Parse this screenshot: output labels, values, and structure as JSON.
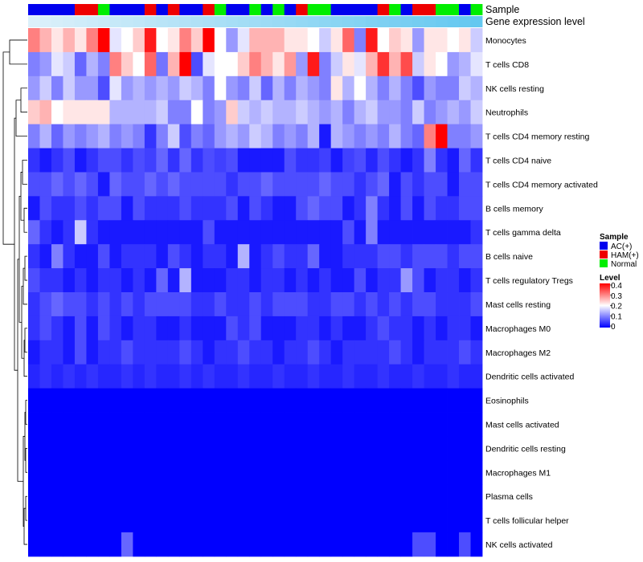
{
  "chart_data": {
    "type": "heatmap",
    "annotations": {
      "sample_label": "Sample",
      "expression_label": "Gene expression level"
    },
    "samples": [
      "AC(+)",
      "AC(+)",
      "AC(+)",
      "AC(+)",
      "HAM(+)",
      "HAM(+)",
      "Normal",
      "AC(+)",
      "AC(+)",
      "AC(+)",
      "HAM(+)",
      "AC(+)",
      "HAM(+)",
      "AC(+)",
      "AC(+)",
      "HAM(+)",
      "Normal",
      "AC(+)",
      "AC(+)",
      "Normal",
      "AC(+)",
      "Normal",
      "AC(+)",
      "HAM(+)",
      "Normal",
      "Normal",
      "AC(+)",
      "AC(+)",
      "AC(+)",
      "AC(+)",
      "HAM(+)",
      "Normal",
      "AC(+)",
      "HAM(+)",
      "HAM(+)",
      "Normal",
      "Normal",
      "AC(+)",
      "Normal"
    ],
    "rows": [
      "Monocytes",
      "T cells CD8",
      "NK cells resting",
      "Neutrophils",
      "T cells CD4 memory resting",
      "T cells CD4 naive",
      "T cells CD4 memory activated",
      "B cells memory",
      "T cells gamma delta",
      "B cells naive",
      "T cells regulatory  Tregs",
      "Mast cells resting",
      "Macrophages M0",
      "Macrophages M2",
      "Dendritic cells activated",
      "Eosinophils",
      "Mast cells activated",
      "Dendritic cells resting",
      "Macrophages M1",
      "Plasma cells",
      "T cells follicular helper",
      "NK cells activated"
    ],
    "values": [
      [
        0.3,
        0.26,
        0.22,
        0.26,
        0.22,
        0.3,
        0.4,
        0.18,
        0.2,
        0.24,
        0.38,
        0.2,
        0.22,
        0.3,
        0.24,
        0.4,
        0.2,
        0.12,
        0.18,
        0.26,
        0.26,
        0.26,
        0.22,
        0.22,
        0.2,
        0.16,
        0.22,
        0.32,
        0.1,
        0.38,
        0.2,
        0.24,
        0.22,
        0.12,
        0.22,
        0.22,
        0.2,
        0.22,
        0.16
      ],
      [
        0.1,
        0.12,
        0.18,
        0.16,
        0.08,
        0.14,
        0.1,
        0.3,
        0.24,
        0.2,
        0.32,
        0.09,
        0.26,
        0.4,
        0.06,
        0.18,
        0.2,
        0.2,
        0.24,
        0.3,
        0.26,
        0.22,
        0.28,
        0.12,
        0.38,
        0.1,
        0.16,
        0.22,
        0.18,
        0.26,
        0.36,
        0.26,
        0.34,
        0.16,
        0.22,
        0.2,
        0.12,
        0.14,
        0.18
      ],
      [
        0.12,
        0.16,
        0.1,
        0.16,
        0.12,
        0.12,
        0.06,
        0.18,
        0.12,
        0.14,
        0.12,
        0.14,
        0.12,
        0.16,
        0.14,
        0.1,
        0.2,
        0.12,
        0.1,
        0.16,
        0.08,
        0.14,
        0.1,
        0.14,
        0.12,
        0.1,
        0.22,
        0.14,
        0.2,
        0.14,
        0.1,
        0.14,
        0.1,
        0.06,
        0.12,
        0.1,
        0.1,
        0.16,
        0.14
      ],
      [
        0.24,
        0.26,
        0.2,
        0.22,
        0.22,
        0.22,
        0.22,
        0.14,
        0.14,
        0.14,
        0.14,
        0.16,
        0.1,
        0.1,
        0.2,
        0.1,
        0.12,
        0.24,
        0.16,
        0.14,
        0.16,
        0.14,
        0.14,
        0.16,
        0.14,
        0.12,
        0.14,
        0.1,
        0.14,
        0.16,
        0.12,
        0.12,
        0.1,
        0.16,
        0.1,
        0.12,
        0.14,
        0.12,
        0.16
      ],
      [
        0.1,
        0.14,
        0.08,
        0.12,
        0.1,
        0.12,
        0.14,
        0.1,
        0.12,
        0.1,
        0.04,
        0.1,
        0.16,
        0.06,
        0.1,
        0.08,
        0.12,
        0.14,
        0.12,
        0.16,
        0.14,
        0.1,
        0.12,
        0.1,
        0.14,
        0.02,
        0.14,
        0.12,
        0.1,
        0.12,
        0.1,
        0.14,
        0.1,
        0.08,
        0.3,
        0.42,
        0.1,
        0.1,
        0.12
      ],
      [
        0.04,
        0.02,
        0.04,
        0.06,
        0.02,
        0.04,
        0.06,
        0.06,
        0.04,
        0.06,
        0.05,
        0.08,
        0.04,
        0.08,
        0.04,
        0.06,
        0.05,
        0.06,
        0.02,
        0.02,
        0.02,
        0.02,
        0.06,
        0.04,
        0.04,
        0.05,
        0.02,
        0.05,
        0.06,
        0.03,
        0.06,
        0.04,
        0.02,
        0.04,
        0.1,
        0.04,
        0.02,
        0.08,
        0.04
      ],
      [
        0.06,
        0.06,
        0.08,
        0.06,
        0.08,
        0.06,
        0.02,
        0.08,
        0.06,
        0.06,
        0.08,
        0.06,
        0.08,
        0.06,
        0.06,
        0.06,
        0.06,
        0.04,
        0.06,
        0.06,
        0.08,
        0.06,
        0.06,
        0.06,
        0.06,
        0.08,
        0.06,
        0.06,
        0.04,
        0.06,
        0.08,
        0.02,
        0.06,
        0.04,
        0.06,
        0.06,
        0.02,
        0.06,
        0.06
      ],
      [
        0.02,
        0.06,
        0.04,
        0.04,
        0.06,
        0.04,
        0.06,
        0.06,
        0.02,
        0.06,
        0.04,
        0.04,
        0.04,
        0.06,
        0.04,
        0.04,
        0.04,
        0.06,
        0.02,
        0.06,
        0.04,
        0.02,
        0.02,
        0.06,
        0.08,
        0.06,
        0.06,
        0.02,
        0.04,
        0.1,
        0.04,
        0.02,
        0.06,
        0.02,
        0.06,
        0.04,
        0.04,
        0.06,
        0.06
      ],
      [
        0.08,
        0.04,
        0.02,
        0.04,
        0.16,
        0.04,
        0.02,
        0.02,
        0.02,
        0.02,
        0.02,
        0.02,
        0.02,
        0.02,
        0.02,
        0.06,
        0.02,
        0.02,
        0.02,
        0.02,
        0.02,
        0.02,
        0.02,
        0.02,
        0.02,
        0.02,
        0.02,
        0.06,
        0.02,
        0.1,
        0.02,
        0.02,
        0.02,
        0.02,
        0.02,
        0.02,
        0.02,
        0.02,
        0.04
      ],
      [
        0.04,
        0.02,
        0.1,
        0.04,
        0.02,
        0.02,
        0.06,
        0.02,
        0.04,
        0.04,
        0.04,
        0.02,
        0.06,
        0.04,
        0.02,
        0.04,
        0.04,
        0.02,
        0.14,
        0.02,
        0.04,
        0.06,
        0.04,
        0.04,
        0.08,
        0.02,
        0.02,
        0.04,
        0.04,
        0.04,
        0.06,
        0.06,
        0.04,
        0.06,
        0.06,
        0.06,
        0.04,
        0.06,
        0.06
      ],
      [
        0.06,
        0.04,
        0.04,
        0.02,
        0.04,
        0.02,
        0.04,
        0.04,
        0.02,
        0.04,
        0.02,
        0.08,
        0.02,
        0.14,
        0.02,
        0.02,
        0.02,
        0.04,
        0.04,
        0.02,
        0.04,
        0.04,
        0.02,
        0.04,
        0.02,
        0.04,
        0.02,
        0.02,
        0.06,
        0.02,
        0.04,
        0.04,
        0.12,
        0.06,
        0.02,
        0.04,
        0.04,
        0.02,
        0.04
      ],
      [
        0.04,
        0.06,
        0.08,
        0.06,
        0.06,
        0.04,
        0.06,
        0.04,
        0.06,
        0.04,
        0.06,
        0.06,
        0.06,
        0.06,
        0.04,
        0.04,
        0.06,
        0.04,
        0.04,
        0.06,
        0.04,
        0.06,
        0.06,
        0.06,
        0.04,
        0.04,
        0.06,
        0.06,
        0.04,
        0.06,
        0.04,
        0.06,
        0.04,
        0.06,
        0.06,
        0.04,
        0.04,
        0.04,
        0.06
      ],
      [
        0.04,
        0.06,
        0.04,
        0.02,
        0.06,
        0.02,
        0.06,
        0.04,
        0.02,
        0.04,
        0.04,
        0.02,
        0.02,
        0.04,
        0.02,
        0.02,
        0.02,
        0.06,
        0.04,
        0.06,
        0.02,
        0.02,
        0.02,
        0.04,
        0.04,
        0.02,
        0.04,
        0.02,
        0.02,
        0.04,
        0.06,
        0.04,
        0.04,
        0.02,
        0.04,
        0.02,
        0.04,
        0.04,
        0.02
      ],
      [
        0.02,
        0.04,
        0.04,
        0.02,
        0.06,
        0.02,
        0.04,
        0.04,
        0.06,
        0.04,
        0.04,
        0.04,
        0.04,
        0.06,
        0.04,
        0.02,
        0.04,
        0.04,
        0.06,
        0.04,
        0.04,
        0.02,
        0.04,
        0.04,
        0.06,
        0.04,
        0.02,
        0.04,
        0.04,
        0.04,
        0.04,
        0.06,
        0.04,
        0.02,
        0.04,
        0.04,
        0.04,
        0.06,
        0.04
      ],
      [
        0.03,
        0.04,
        0.03,
        0.04,
        0.03,
        0.04,
        0.03,
        0.03,
        0.04,
        0.03,
        0.04,
        0.03,
        0.03,
        0.04,
        0.03,
        0.04,
        0.03,
        0.03,
        0.04,
        0.03,
        0.03,
        0.04,
        0.03,
        0.03,
        0.04,
        0.03,
        0.03,
        0.04,
        0.03,
        0.03,
        0.04,
        0.03,
        0.03,
        0.04,
        0.03,
        0.03,
        0.04,
        0.03,
        0.03
      ],
      [
        0,
        0,
        0,
        0,
        0,
        0,
        0,
        0,
        0,
        0,
        0,
        0,
        0,
        0,
        0,
        0,
        0,
        0,
        0,
        0,
        0,
        0,
        0,
        0,
        0,
        0,
        0,
        0,
        0,
        0,
        0,
        0,
        0,
        0,
        0,
        0,
        0,
        0,
        0
      ],
      [
        0,
        0,
        0,
        0,
        0,
        0,
        0,
        0,
        0,
        0,
        0,
        0,
        0,
        0,
        0,
        0,
        0,
        0,
        0,
        0,
        0,
        0,
        0,
        0,
        0,
        0,
        0,
        0,
        0,
        0,
        0,
        0,
        0,
        0,
        0,
        0,
        0,
        0,
        0
      ],
      [
        0,
        0,
        0,
        0,
        0,
        0,
        0,
        0,
        0,
        0,
        0,
        0,
        0,
        0,
        0,
        0,
        0,
        0,
        0,
        0,
        0,
        0,
        0,
        0,
        0,
        0,
        0,
        0,
        0,
        0,
        0,
        0,
        0,
        0,
        0,
        0,
        0,
        0,
        0
      ],
      [
        0,
        0,
        0,
        0,
        0,
        0,
        0,
        0,
        0,
        0,
        0,
        0,
        0,
        0,
        0,
        0,
        0,
        0,
        0,
        0,
        0,
        0,
        0,
        0,
        0,
        0,
        0,
        0,
        0,
        0,
        0,
        0,
        0,
        0,
        0,
        0,
        0,
        0,
        0
      ],
      [
        0,
        0,
        0,
        0,
        0,
        0,
        0,
        0,
        0,
        0,
        0,
        0,
        0,
        0,
        0,
        0,
        0,
        0,
        0,
        0,
        0,
        0,
        0,
        0,
        0,
        0,
        0,
        0,
        0,
        0,
        0,
        0,
        0,
        0,
        0,
        0,
        0,
        0,
        0
      ],
      [
        0,
        0,
        0,
        0,
        0,
        0,
        0,
        0,
        0,
        0,
        0,
        0,
        0,
        0,
        0,
        0,
        0,
        0,
        0,
        0,
        0,
        0,
        0,
        0,
        0,
        0,
        0,
        0,
        0,
        0,
        0,
        0,
        0,
        0,
        0,
        0,
        0,
        0,
        0
      ],
      [
        0,
        0,
        0,
        0,
        0,
        0,
        0,
        0,
        0.08,
        0,
        0,
        0,
        0,
        0,
        0,
        0,
        0,
        0,
        0,
        0,
        0,
        0,
        0,
        0,
        0,
        0,
        0,
        0,
        0,
        0,
        0,
        0,
        0,
        0.06,
        0.06,
        0,
        0,
        0.06,
        0
      ]
    ],
    "legend": {
      "sample_title": "Sample",
      "sample_items": [
        {
          "label": "AC(+)",
          "color": "#0000ee"
        },
        {
          "label": "HAM(+)",
          "color": "#ee0000"
        },
        {
          "label": "Normal",
          "color": "#00ee00"
        }
      ],
      "level_title": "Level",
      "level_ticks": [
        "0.4",
        "0.3",
        "0.2",
        "0.1",
        "0"
      ],
      "level_range": [
        0,
        0.4
      ]
    },
    "colors": {
      "low": "#0000ff",
      "mid": "#ffffff",
      "high": "#ff0000",
      "expression_band": "#6cc7ee"
    }
  }
}
